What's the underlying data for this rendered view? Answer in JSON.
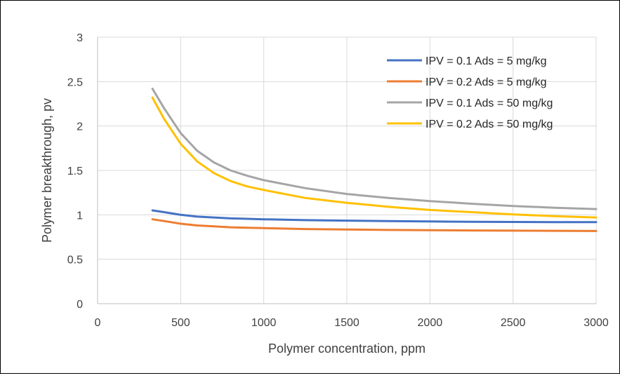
{
  "chart_data": {
    "type": "line",
    "xlabel": "Polymer concentration, ppm",
    "ylabel": "Polymer breakthrough, pv",
    "xlim": [
      0,
      3000
    ],
    "ylim": [
      0,
      3
    ],
    "xticks": [
      "0",
      "500",
      "1000",
      "1500",
      "2000",
      "2500",
      "3000"
    ],
    "yticks": [
      "0",
      "0.5",
      "1",
      "1.5",
      "2",
      "2.5",
      "3"
    ],
    "grid": true,
    "legend_position": "top-right",
    "x": [
      330,
      400,
      500,
      600,
      700,
      800,
      900,
      1000,
      1250,
      1500,
      1750,
      2000,
      2250,
      2500,
      2750,
      3000
    ],
    "series": [
      {
        "name": "IPV = 0.1 Ads = 5 mg/kg",
        "color": "#4472C4",
        "values": [
          1.05,
          1.03,
          1.0,
          0.98,
          0.97,
          0.96,
          0.955,
          0.95,
          0.94,
          0.935,
          0.93,
          0.925,
          0.922,
          0.92,
          0.918,
          0.917
        ]
      },
      {
        "name": "IPV = 0.2 Ads = 5 mg/kg",
        "color": "#ED7D31",
        "values": [
          0.95,
          0.93,
          0.9,
          0.88,
          0.87,
          0.86,
          0.855,
          0.85,
          0.84,
          0.835,
          0.83,
          0.827,
          0.824,
          0.822,
          0.82,
          0.818
        ]
      },
      {
        "name": "IPV = 0.1 Ads = 50 mg/kg",
        "color": "#A5A5A5",
        "values": [
          2.42,
          2.2,
          1.92,
          1.72,
          1.59,
          1.5,
          1.44,
          1.39,
          1.3,
          1.235,
          1.19,
          1.155,
          1.125,
          1.1,
          1.08,
          1.065
        ]
      },
      {
        "name": "IPV = 0.2 Ads = 50 mg/kg",
        "color": "#FFC000",
        "values": [
          2.32,
          2.08,
          1.8,
          1.6,
          1.47,
          1.38,
          1.32,
          1.28,
          1.19,
          1.135,
          1.09,
          1.055,
          1.03,
          1.005,
          0.985,
          0.97
        ]
      }
    ]
  }
}
